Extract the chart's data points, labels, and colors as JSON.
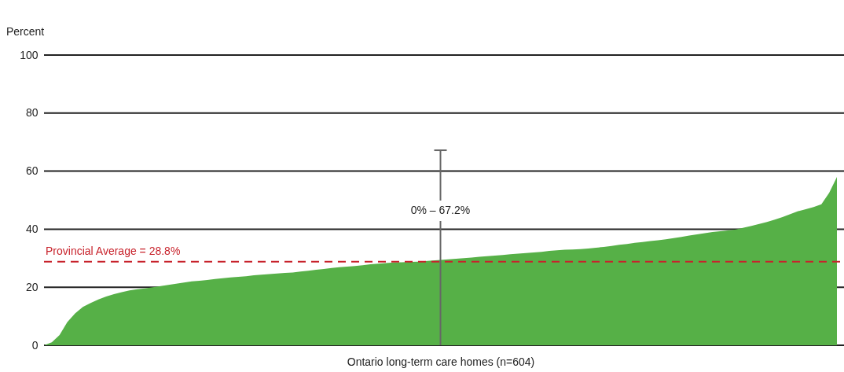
{
  "chart_data": {
    "type": "area",
    "ylabel": "Percent",
    "xlabel": "Ontario long-term care homes (n=604)",
    "categories": [
      null,
      null,
      null,
      null,
      null,
      null,
      null,
      null,
      null,
      null,
      null,
      null,
      null,
      null,
      null,
      null,
      null,
      null,
      null,
      null,
      null,
      null,
      null,
      null,
      null,
      null,
      null,
      null,
      null,
      null,
      null,
      null,
      null,
      null,
      null,
      null,
      null,
      null,
      null,
      null,
      null,
      null,
      null,
      null,
      null,
      null,
      null,
      null,
      null,
      null,
      null,
      null,
      null,
      null,
      null,
      null,
      null,
      null,
      null,
      null,
      null,
      null,
      null,
      null,
      null,
      null,
      null,
      null,
      null,
      null,
      null,
      null,
      null,
      null,
      null,
      null,
      null,
      null,
      null,
      null,
      null,
      null,
      null,
      null,
      null,
      null,
      null,
      null,
      null,
      null,
      null,
      null,
      null,
      null,
      null,
      null,
      null,
      null,
      null,
      null,
      null,
      null,
      null
    ],
    "values": [
      0,
      1,
      3.5,
      8,
      11,
      13.2,
      14.6,
      15.8,
      16.8,
      17.6,
      18.3,
      18.9,
      19.3,
      19.6,
      20,
      20.4,
      20.8,
      21.2,
      21.6,
      22,
      22.2,
      22.5,
      22.8,
      23.1,
      23.4,
      23.6,
      23.8,
      24.1,
      24.3,
      24.5,
      24.7,
      24.9,
      25.1,
      25.4,
      25.7,
      26,
      26.3,
      26.6,
      26.9,
      27.1,
      27.3,
      27.6,
      27.9,
      28.1,
      28.3,
      28.5,
      28.6,
      28.7,
      28.8,
      29,
      29.2,
      29.4,
      29.6,
      29.8,
      30,
      30.2,
      30.5,
      30.7,
      30.9,
      31.1,
      31.4,
      31.6,
      31.8,
      32,
      32.2,
      32.5,
      32.7,
      32.9,
      33,
      33.1,
      33.3,
      33.6,
      33.9,
      34.2,
      34.6,
      34.9,
      35.3,
      35.6,
      35.9,
      36.2,
      36.5,
      36.9,
      37.3,
      37.8,
      38.2,
      38.6,
      39,
      39.3,
      39.6,
      39.9,
      40.5,
      41.1,
      41.8,
      42.5,
      43.3,
      44.2,
      45.2,
      46.2,
      46.9,
      47.6,
      48.6,
      52.5,
      58
    ],
    "color": "#56b047",
    "errors": [
      null,
      null,
      null,
      null,
      null,
      null,
      null,
      null,
      null,
      null,
      null,
      null,
      null,
      null,
      null,
      null,
      null,
      null,
      null,
      null,
      null,
      null,
      null,
      null,
      null,
      null,
      null,
      null,
      null,
      null,
      null,
      null,
      null,
      null,
      null,
      null,
      null,
      null,
      null,
      null,
      null,
      null,
      null,
      null,
      null,
      null,
      null,
      null,
      null,
      null,
      null,
      [
        0,
        67.2
      ],
      null,
      null,
      null,
      null,
      null,
      null,
      null,
      null,
      null,
      null,
      null,
      null,
      null,
      null,
      null,
      null,
      null,
      null,
      null,
      null,
      null,
      null,
      null,
      null,
      null,
      null,
      null,
      null,
      null,
      null,
      null,
      null,
      null,
      null,
      null,
      null,
      null,
      null,
      null,
      null,
      null,
      null,
      null,
      null,
      null,
      null,
      null,
      null,
      null,
      null,
      null
    ],
    "annotations": [
      "0% – 67.2%"
    ],
    "ref_lines": [
      {
        "axis": "y",
        "value": 28.8,
        "label": "Provincial Average = 28.8%",
        "color": "#c8232c",
        "line_style": "dashed"
      }
    ],
    "ylim": [
      0,
      100
    ],
    "yticks": [
      0,
      20,
      40,
      60,
      80,
      100
    ],
    "grid": "y"
  }
}
